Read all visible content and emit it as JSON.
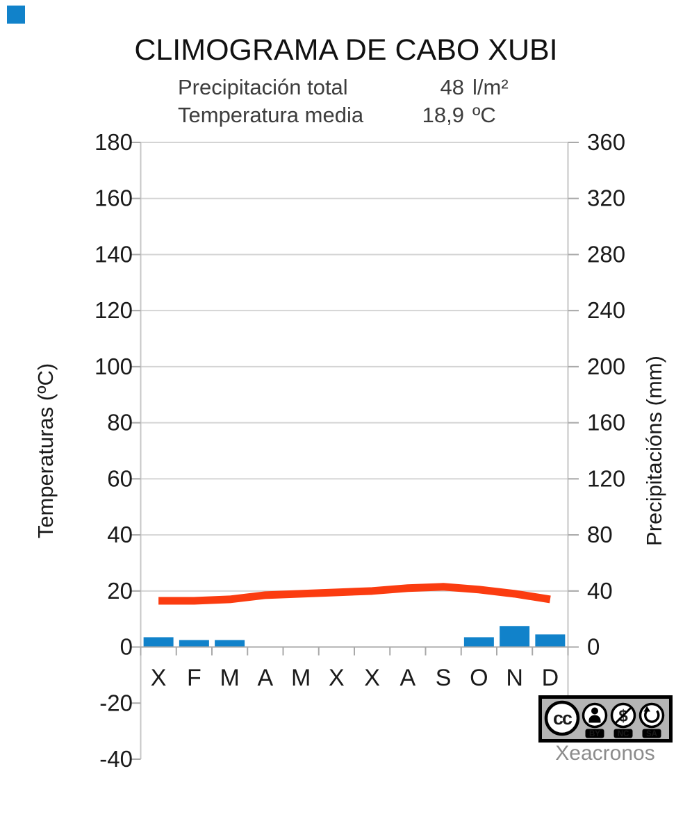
{
  "chart": {
    "title": "CLIMOGRAMA DE CABO XUBI",
    "summary": {
      "precip_label": "Precipitación total",
      "precip_value": "48",
      "precip_unit": "l/m²",
      "temp_label": "Temperatura media",
      "temp_value": "18,9",
      "temp_unit": "ºC"
    }
  },
  "chart_data": {
    "type": "bar+line",
    "title": "CLIMOGRAMA DE CABO XUBI",
    "subtitle": "Precipitación total 48 l/m² — Temperatura media 18,9 ºC",
    "categories": [
      "X",
      "F",
      "M",
      "A",
      "M",
      "X",
      "X",
      "A",
      "S",
      "O",
      "N",
      "D"
    ],
    "series": [
      {
        "name": "Precipitacións",
        "type": "bar",
        "axis": "right",
        "unit": "mm",
        "color": "#1182ca",
        "values": [
          7,
          5,
          5,
          0,
          0,
          0,
          0,
          0,
          0,
          7,
          15,
          9
        ]
      },
      {
        "name": "Temperaturas",
        "type": "line",
        "axis": "left",
        "unit": "ºC",
        "color": "#fb3c10",
        "values": [
          16.5,
          16.5,
          17,
          18.5,
          19,
          19.5,
          20,
          21,
          21.5,
          20.5,
          19,
          17
        ]
      }
    ],
    "precipitation_total_mm": 48,
    "temperature_mean_c": "18,9",
    "y_left": {
      "label": "Temperaturas (ºC)",
      "min": -40,
      "max": 180,
      "ticks": [
        180,
        160,
        140,
        120,
        100,
        80,
        60,
        40,
        20,
        0,
        -20,
        -40
      ]
    },
    "y_right": {
      "label": "Precipitacións (mm)",
      "min": 0,
      "max": 360,
      "ticks": [
        360,
        320,
        280,
        240,
        200,
        160,
        120,
        80,
        40,
        0
      ]
    },
    "grid": true,
    "legend": false
  },
  "license": {
    "cc_label": "cc",
    "parts": [
      "BY",
      "NC",
      "SA"
    ]
  },
  "credit": "Xeacronos",
  "colors": {
    "bar": "#1182ca",
    "line": "#fb3c10",
    "gridline": "#d4d4d4",
    "axis": "#a9a9a9",
    "border": "#c6c6c6",
    "subtitle_text": "#3d3d3d",
    "credit_text": "#8c8c8c",
    "badge_background": "#b5b5b5"
  }
}
